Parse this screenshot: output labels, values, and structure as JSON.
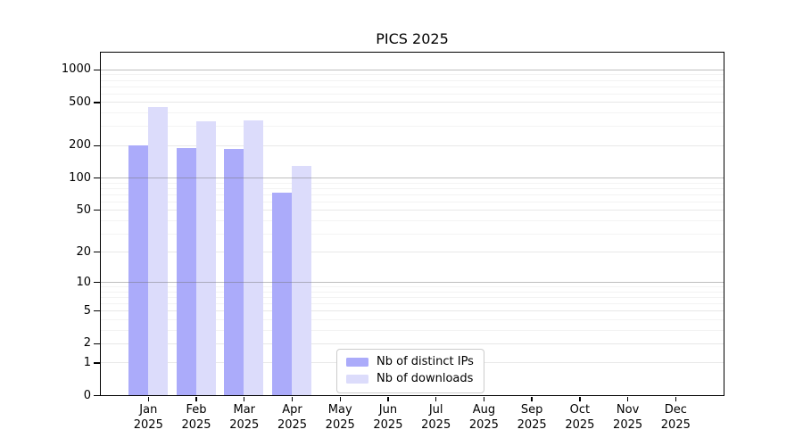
{
  "chart_data": {
    "type": "bar",
    "title": "PICS 2025",
    "categories": [
      "Jan",
      "Feb",
      "Mar",
      "Apr",
      "May",
      "Jun",
      "Jul",
      "Aug",
      "Sep",
      "Oct",
      "Nov",
      "Dec"
    ],
    "category_year": "2025",
    "series": [
      {
        "name": "Nb of distinct IPs",
        "color": "#ababfa",
        "values": [
          200,
          187,
          186,
          72,
          0,
          0,
          0,
          0,
          0,
          0,
          0,
          0
        ]
      },
      {
        "name": "Nb of downloads",
        "color": "#dcdcfb",
        "values": [
          448,
          332,
          340,
          128,
          0,
          0,
          0,
          0,
          0,
          0,
          0,
          0
        ]
      }
    ],
    "yscale": "log10(1+x)",
    "yticks": [
      0,
      1,
      2,
      5,
      10,
      20,
      50,
      100,
      200,
      500,
      1000
    ],
    "ylim": [
      0,
      1430
    ],
    "xlabel": "",
    "ylabel": "",
    "grid": "horizontal major + log minor lines, decade lines darker",
    "legend_position": "inside plot, lower center-left",
    "bar_group": "two bars per month, touching, centered on month tick"
  }
}
